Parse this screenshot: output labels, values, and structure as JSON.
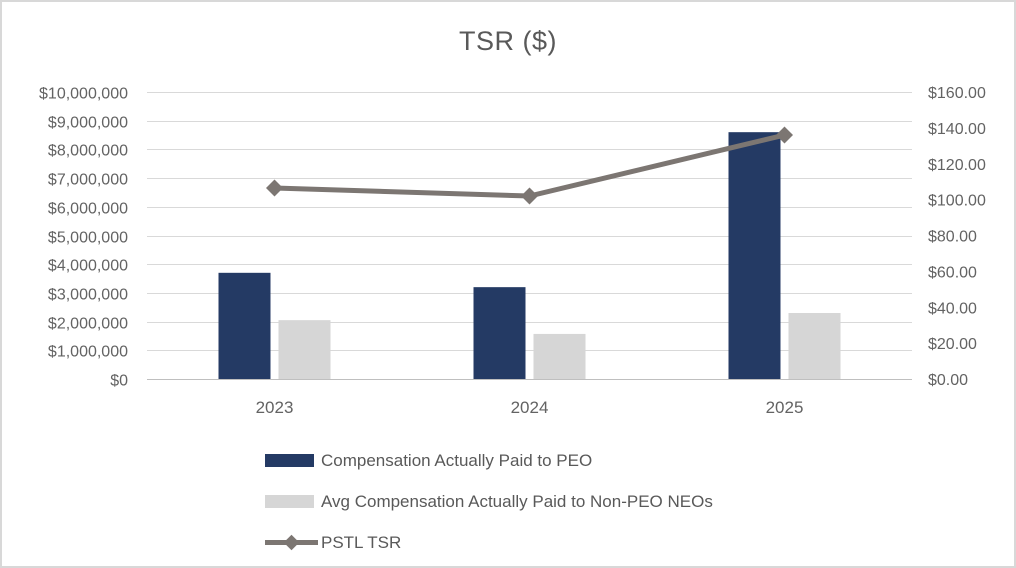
{
  "title": "TSR ($)",
  "colors": {
    "peo_bar": "#243A64",
    "non_peo_bar": "#D6D6D6",
    "tsr_line": "#7C7672",
    "gridline": "#D9D9D9",
    "axis_line": "#BFBFBF",
    "axis_text": "#636363",
    "title_text": "#595959",
    "canvas_border": "#D8D8D8"
  },
  "chart_data": {
    "type": "bar+line combo",
    "title": "TSR ($)",
    "categories": [
      "2023",
      "2024",
      "2025"
    ],
    "series": [
      {
        "name": "Compensation Actually Paid to PEO",
        "type": "bar",
        "axis": "left",
        "color": "#243A64",
        "values": [
          3700000,
          3200000,
          8600000
        ]
      },
      {
        "name": "Avg Compensation Actually Paid to Non-PEO NEOs",
        "type": "bar",
        "axis": "left",
        "color": "#D6D6D6",
        "values": [
          2050000,
          1570000,
          2300000
        ]
      },
      {
        "name": "PSTL TSR",
        "type": "line",
        "axis": "right",
        "color": "#7C7672",
        "marker": "diamond",
        "values": [
          106.5,
          102.0,
          136.0
        ]
      }
    ],
    "left_axis": {
      "min": 0,
      "max": 10000000,
      "step": 1000000,
      "tick_labels": [
        "$0",
        "$1,000,000",
        "$2,000,000",
        "$3,000,000",
        "$4,000,000",
        "$5,000,000",
        "$6,000,000",
        "$7,000,000",
        "$8,000,000",
        "$9,000,000",
        "$10,000,000"
      ]
    },
    "right_axis": {
      "min": 0,
      "max": 160,
      "step": 20,
      "tick_labels": [
        "$0.00",
        "$20.00",
        "$40.00",
        "$60.00",
        "$80.00",
        "$100.00",
        "$120.00",
        "$140.00",
        "$160.00"
      ]
    },
    "grid": true,
    "legend_position": "bottom-left"
  },
  "legend": {
    "items": [
      {
        "label": "Compensation Actually Paid to PEO",
        "swatch": "bar-navy"
      },
      {
        "label": "Avg Compensation Actually Paid to Non-PEO NEOs",
        "swatch": "bar-gray"
      },
      {
        "label": "PSTL TSR",
        "swatch": "line-diamond"
      }
    ]
  }
}
